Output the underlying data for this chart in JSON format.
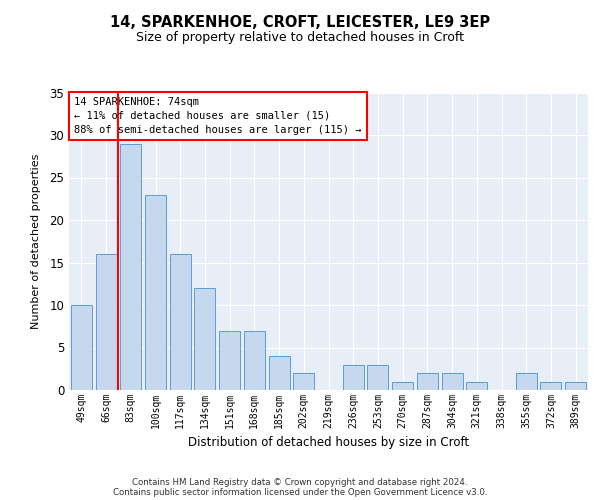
{
  "title1": "14, SPARKENHOE, CROFT, LEICESTER, LE9 3EP",
  "title2": "Size of property relative to detached houses in Croft",
  "xlabel": "Distribution of detached houses by size in Croft",
  "ylabel": "Number of detached properties",
  "categories": [
    "49sqm",
    "66sqm",
    "83sqm",
    "100sqm",
    "117sqm",
    "134sqm",
    "151sqm",
    "168sqm",
    "185sqm",
    "202sqm",
    "219sqm",
    "236sqm",
    "253sqm",
    "270sqm",
    "287sqm",
    "304sqm",
    "321sqm",
    "338sqm",
    "355sqm",
    "372sqm",
    "389sqm"
  ],
  "values": [
    10,
    16,
    29,
    23,
    16,
    12,
    7,
    7,
    4,
    2,
    0,
    3,
    3,
    1,
    2,
    2,
    1,
    0,
    2,
    1,
    1
  ],
  "bar_color": "#c5d8ed",
  "bar_edge_color": "#5b9bd5",
  "red_line_x": 1.5,
  "annotation_text": "14 SPARKENHOE: 74sqm\n← 11% of detached houses are smaller (15)\n88% of semi-detached houses are larger (115) →",
  "ylim": [
    0,
    35
  ],
  "yticks": [
    0,
    5,
    10,
    15,
    20,
    25,
    30,
    35
  ],
  "footer": "Contains HM Land Registry data © Crown copyright and database right 2024.\nContains public sector information licensed under the Open Government Licence v3.0.",
  "fig_bg_color": "#ffffff",
  "plot_bg_color": "#e8eef7"
}
